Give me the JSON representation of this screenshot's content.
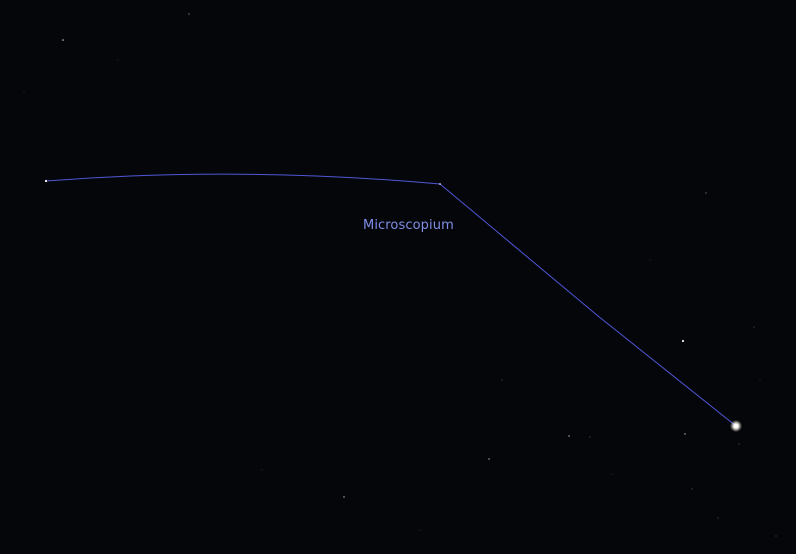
{
  "constellation": {
    "name": "Microscopium"
  },
  "colors": {
    "background": "#05060a",
    "constellation_line": "#4f57d6",
    "label": "#7f8ee8",
    "star": "#ffffff"
  }
}
